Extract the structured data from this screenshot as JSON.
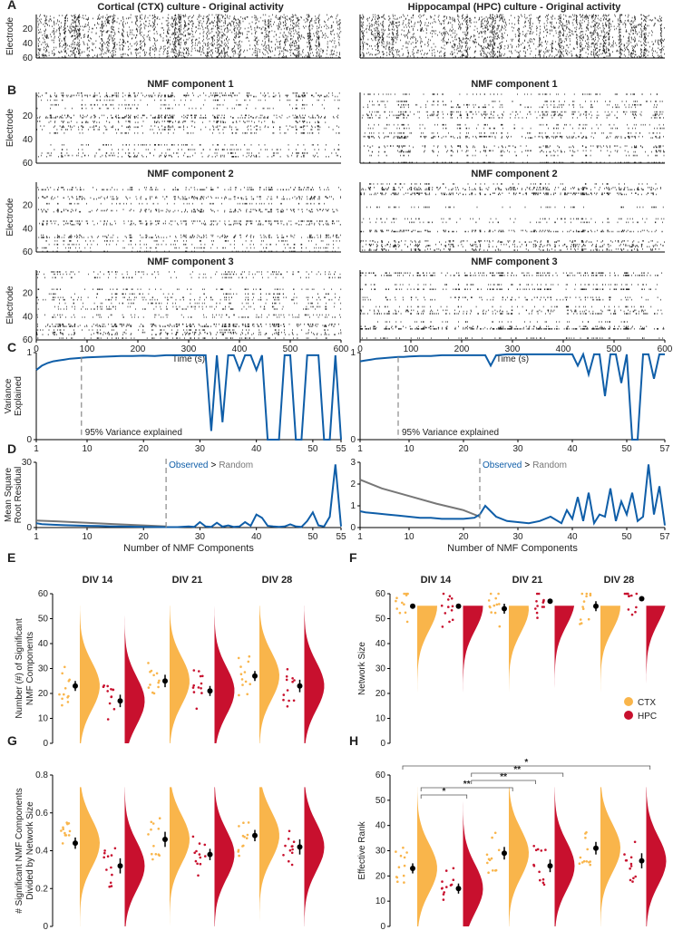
{
  "figure": {
    "panel_letters": [
      "A",
      "B",
      "C",
      "D",
      "E",
      "F",
      "G",
      "H"
    ],
    "columns": {
      "ctx_title": "Cortical (CTX) culture - Original activity",
      "hpc_title": "Hippocampal (HPC) culture - Original activity"
    },
    "nmf_titles": [
      "NMF component 1",
      "NMF component 2",
      "NMF component 3"
    ]
  },
  "chart_data": [
    {
      "id": "raster",
      "type": "scatter",
      "panel": "A-B",
      "xlabel": "Time (s)",
      "ylabel": "Electrode",
      "xlim": [
        0,
        600
      ],
      "ylim": [
        60,
        0
      ],
      "xticks": [
        0,
        100,
        200,
        300,
        400,
        500,
        600
      ],
      "yticks": [
        20,
        40,
        60
      ]
    },
    {
      "id": "variance",
      "type": "line",
      "panel": "C",
      "ylabel": [
        "Variance",
        "Explained"
      ],
      "yticks": [
        0,
        1
      ],
      "annotation": "95% Variance explained",
      "ctx": {
        "xlim": [
          1,
          55
        ],
        "xticks": [
          1,
          10,
          20,
          30,
          40,
          50,
          55
        ],
        "threshold_x": 9,
        "x": [
          1,
          2,
          3,
          4,
          5,
          6,
          7,
          8,
          9,
          10,
          12,
          14,
          16,
          18,
          20,
          22,
          24,
          26,
          28,
          30,
          31,
          32,
          33,
          34,
          35,
          36,
          37,
          38,
          39,
          40,
          41,
          42,
          43,
          44,
          45,
          46,
          47,
          48,
          49,
          50,
          51,
          52,
          53,
          54,
          55
        ],
        "y": [
          0.8,
          0.85,
          0.88,
          0.9,
          0.91,
          0.92,
          0.93,
          0.935,
          0.94,
          0.945,
          0.95,
          0.955,
          0.96,
          0.96,
          0.965,
          0.96,
          0.97,
          0.97,
          0.97,
          0.97,
          0.97,
          0.1,
          0.97,
          0.2,
          0.97,
          0.97,
          0.8,
          0.97,
          0.97,
          0.8,
          0.97,
          0.0,
          0.0,
          0.0,
          0.97,
          0.97,
          0.0,
          0.0,
          0.97,
          0.97,
          0.97,
          0.0,
          0.0,
          0.97,
          0.0
        ]
      },
      "hpc": {
        "xlim": [
          1,
          57
        ],
        "xticks": [
          1,
          10,
          20,
          30,
          40,
          50,
          57
        ],
        "threshold_x": 8,
        "x": [
          1,
          2,
          3,
          4,
          5,
          6,
          7,
          8,
          9,
          10,
          12,
          14,
          16,
          18,
          20,
          22,
          24,
          25,
          26,
          28,
          30,
          32,
          34,
          36,
          38,
          40,
          41,
          42,
          43,
          44,
          45,
          46,
          47,
          48,
          49,
          50,
          51,
          52,
          53,
          54,
          55,
          56,
          57
        ],
        "y": [
          0.9,
          0.91,
          0.92,
          0.93,
          0.935,
          0.94,
          0.945,
          0.95,
          0.95,
          0.955,
          0.96,
          0.96,
          0.97,
          0.97,
          0.97,
          0.97,
          0.97,
          0.85,
          0.97,
          0.98,
          0.98,
          0.98,
          0.98,
          0.98,
          0.98,
          0.98,
          0.85,
          0.98,
          0.75,
          0.98,
          0.98,
          0.5,
          0.98,
          0.98,
          0.65,
          0.98,
          0.0,
          0.0,
          0.98,
          0.98,
          0.7,
          0.98,
          0.98
        ]
      }
    },
    {
      "id": "residual",
      "type": "line",
      "panel": "D",
      "xlabel": "Number of NMF Components",
      "ylabel": [
        "Mean Square",
        "Root Residual"
      ],
      "legend_observed": "Observed",
      "legend_gt": ">",
      "legend_random": "Random",
      "ctx": {
        "ylim": [
          0,
          30
        ],
        "yticks": [
          0,
          30
        ],
        "xlim": [
          1,
          55
        ],
        "xticks": [
          1,
          10,
          20,
          30,
          40,
          50,
          55
        ],
        "crossing_x": 24,
        "observed_x": [
          1,
          2,
          4,
          6,
          8,
          10,
          12,
          14,
          16,
          18,
          20,
          22,
          24,
          26,
          28,
          29,
          30,
          31,
          32,
          33,
          34,
          35,
          36,
          37,
          38,
          39,
          40,
          41,
          42,
          43,
          44,
          45,
          46,
          47,
          48,
          49,
          50,
          51,
          52,
          53,
          54,
          55
        ],
        "observed_y": [
          2.0,
          1.6,
          1.3,
          1.1,
          0.9,
          0.8,
          0.7,
          0.6,
          0.5,
          0.4,
          0.3,
          0.25,
          0.2,
          0.2,
          0.5,
          0.3,
          2.5,
          0.5,
          0.3,
          2.2,
          0.4,
          1.0,
          0.3,
          0.5,
          2.5,
          0.8,
          6.0,
          4.5,
          0.8,
          0.5,
          0.3,
          0.5,
          1.5,
          0.5,
          0.3,
          3.0,
          7.0,
          1.0,
          0.5,
          5.0,
          29.0,
          0.5
        ],
        "random_x": [
          1,
          5,
          10,
          15,
          20,
          24
        ],
        "random_y": [
          3.2,
          2.8,
          2.2,
          1.6,
          1.0,
          0.5
        ]
      },
      "hpc": {
        "ylim": [
          0,
          3
        ],
        "yticks": [
          0,
          1,
          2,
          3
        ],
        "xlim": [
          1,
          57
        ],
        "xticks": [
          1,
          10,
          20,
          30,
          40,
          50,
          57
        ],
        "crossing_x": 23,
        "observed_x": [
          1,
          2,
          4,
          6,
          8,
          10,
          12,
          14,
          16,
          18,
          20,
          22,
          23,
          24,
          26,
          28,
          30,
          32,
          34,
          36,
          38,
          39,
          40,
          41,
          42,
          43,
          44,
          45,
          46,
          47,
          48,
          49,
          50,
          51,
          52,
          53,
          54,
          55,
          56,
          57
        ],
        "observed_y": [
          0.75,
          0.7,
          0.65,
          0.6,
          0.55,
          0.5,
          0.45,
          0.45,
          0.4,
          0.4,
          0.4,
          0.45,
          0.6,
          1.0,
          0.5,
          0.3,
          0.25,
          0.2,
          0.3,
          0.5,
          0.2,
          0.8,
          0.4,
          1.4,
          0.3,
          1.6,
          0.2,
          0.6,
          0.5,
          1.8,
          0.3,
          1.2,
          0.6,
          1.6,
          0.3,
          0.5,
          2.9,
          0.6,
          1.9,
          0.1
        ],
        "random_x": [
          1,
          5,
          10,
          15,
          20,
          23
        ],
        "random_y": [
          2.2,
          1.8,
          1.45,
          1.1,
          0.8,
          0.5
        ]
      }
    },
    {
      "id": "E",
      "type": "scatter",
      "panel": "E",
      "ylabel": [
        "Number (#) of Significant",
        "NMF Components"
      ],
      "ylim": [
        0,
        60
      ],
      "yticks": [
        0,
        10,
        20,
        30,
        40,
        50,
        60
      ],
      "groups": [
        "DIV 14",
        "DIV 21",
        "DIV 28"
      ],
      "series": [
        {
          "name": "CTX",
          "means": [
            23,
            25,
            27
          ],
          "sem": [
            2,
            2.5,
            2
          ]
        },
        {
          "name": "HPC",
          "means": [
            17,
            21,
            23
          ],
          "sem": [
            2.5,
            2,
            2.5
          ]
        }
      ]
    },
    {
      "id": "F",
      "type": "scatter",
      "panel": "F",
      "ylabel": "Network Size",
      "ylim": [
        0,
        60
      ],
      "yticks": [
        0,
        10,
        20,
        30,
        40,
        50,
        60
      ],
      "groups": [
        "DIV 14",
        "DIV 21",
        "DIV 28"
      ],
      "legend": [
        {
          "name": "CTX",
          "color": "#f9b54b"
        },
        {
          "name": "HPC",
          "color": "#c8102e"
        }
      ],
      "series": [
        {
          "name": "CTX",
          "means": [
            55,
            54,
            55
          ],
          "sem": [
            1,
            2,
            2
          ]
        },
        {
          "name": "HPC",
          "means": [
            55,
            57,
            58
          ],
          "sem": [
            1,
            0.5,
            0.3
          ]
        }
      ]
    },
    {
      "id": "G",
      "type": "scatter",
      "panel": "G",
      "ylabel": [
        "# Significant NMF Components",
        "Divided by Network Size"
      ],
      "ylim": [
        0,
        0.8
      ],
      "yticks": [
        "0",
        "0.2",
        "0.4",
        "0.6",
        "0.8"
      ],
      "groups": [
        "DIV 14",
        "DIV 21",
        "DIV 28"
      ],
      "series": [
        {
          "name": "CTX",
          "means": [
            0.44,
            0.46,
            0.48
          ],
          "sem": [
            0.03,
            0.04,
            0.03
          ]
        },
        {
          "name": "HPC",
          "means": [
            0.32,
            0.38,
            0.42
          ],
          "sem": [
            0.04,
            0.03,
            0.04
          ]
        }
      ]
    },
    {
      "id": "H",
      "type": "scatter",
      "panel": "H",
      "ylabel": "Effective Rank",
      "ylim": [
        0,
        60
      ],
      "yticks": [
        0,
        10,
        20,
        30,
        40,
        50,
        60
      ],
      "groups": [
        "DIV 14",
        "DIV 21",
        "DIV 28"
      ],
      "series": [
        {
          "name": "CTX",
          "means": [
            23,
            29,
            31
          ],
          "sem": [
            2,
            2.5,
            2.5
          ]
        },
        {
          "name": "HPC",
          "means": [
            15,
            24,
            26
          ],
          "sem": [
            2,
            2.5,
            3
          ]
        }
      ],
      "significance": [
        {
          "from": "DIV 14 CTX",
          "to": "DIV 28 HPC",
          "label": "*"
        },
        {
          "from": "DIV 14 HPC",
          "to": "DIV 21 HPC",
          "label": "**"
        },
        {
          "from": "DIV 14 HPC",
          "to": "DIV 21 CTX",
          "label": "**"
        },
        {
          "from": "DIV 14 CTX",
          "to": "DIV 21 CTX",
          "label": "**"
        },
        {
          "from": "DIV 14 CTX",
          "to": "DIV 14 HPC",
          "label": "*"
        }
      ]
    }
  ],
  "colors": {
    "ctx": "#f9b54b",
    "hpc": "#c8102e",
    "line": "#0f5ea8",
    "random": "#777777",
    "raster": "#000000",
    "text": "#222222"
  }
}
